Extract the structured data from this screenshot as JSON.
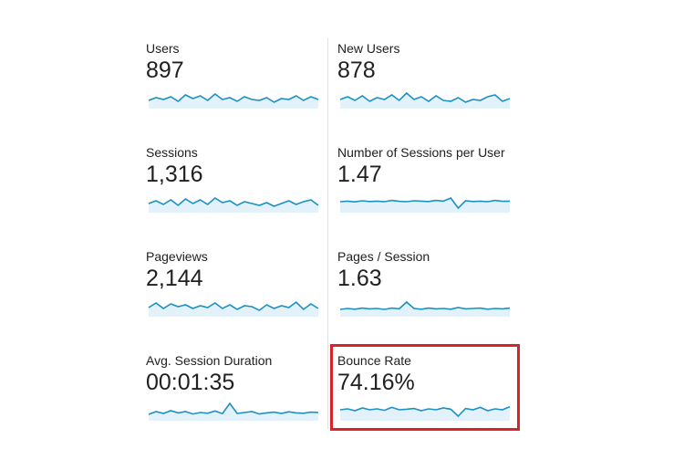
{
  "metrics": [
    {
      "label": "Users",
      "value": "897",
      "sparkline": [
        40,
        55,
        45,
        60,
        35,
        70,
        50,
        65,
        40,
        75,
        45,
        55,
        35,
        60,
        45,
        40,
        55,
        30,
        50,
        45,
        65,
        40,
        60,
        45
      ]
    },
    {
      "label": "New Users",
      "value": "878",
      "sparkline": [
        45,
        60,
        40,
        65,
        35,
        55,
        45,
        70,
        40,
        80,
        45,
        60,
        35,
        65,
        40,
        35,
        55,
        30,
        45,
        40,
        60,
        70,
        35,
        50
      ]
    },
    {
      "label": "Sessions",
      "value": "1,316",
      "sparkline": [
        45,
        60,
        40,
        65,
        35,
        70,
        45,
        65,
        40,
        75,
        50,
        60,
        35,
        55,
        45,
        35,
        50,
        30,
        45,
        60,
        40,
        55,
        65,
        35
      ]
    },
    {
      "label": "Number of Sessions per User",
      "value": "1.47",
      "sparkline": [
        55,
        58,
        54,
        60,
        56,
        58,
        55,
        62,
        57,
        55,
        60,
        58,
        56,
        62,
        58,
        75,
        20,
        60,
        56,
        58,
        55,
        62,
        57,
        58
      ]
    },
    {
      "label": "Pageviews",
      "value": "2,144",
      "sparkline": [
        45,
        70,
        40,
        65,
        50,
        60,
        40,
        55,
        45,
        70,
        40,
        60,
        35,
        55,
        50,
        30,
        60,
        40,
        55,
        45,
        75,
        35,
        65,
        40
      ]
    },
    {
      "label": "Pages / Session",
      "value": "1.63",
      "sparkline": [
        35,
        40,
        36,
        42,
        38,
        40,
        35,
        42,
        38,
        75,
        40,
        36,
        42,
        38,
        40,
        36,
        45,
        38,
        40,
        42,
        36,
        40,
        38,
        42
      ]
    },
    {
      "label": "Avg. Session Duration",
      "value": "00:01:35",
      "sparkline": [
        30,
        45,
        35,
        50,
        38,
        45,
        32,
        40,
        36,
        48,
        34,
        90,
        35,
        40,
        45,
        32,
        38,
        42,
        35,
        44,
        38,
        36,
        42,
        40
      ]
    },
    {
      "label": "Bounce Rate",
      "value": "74.16%",
      "sparkline": [
        55,
        60,
        50,
        65,
        55,
        60,
        52,
        68,
        55,
        58,
        62,
        50,
        60,
        55,
        65,
        58,
        20,
        62,
        55,
        68,
        50,
        60,
        55,
        72
      ]
    }
  ]
}
